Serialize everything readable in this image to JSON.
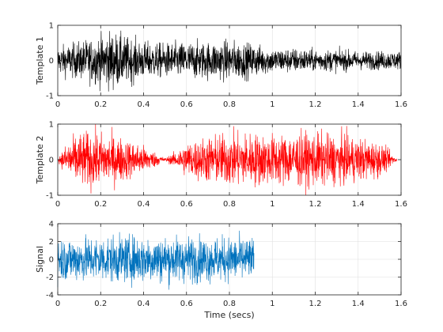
{
  "chart_data": [
    {
      "type": "line",
      "ylabel": "Template 1",
      "xlabel": "",
      "xlim": [
        0,
        1.6
      ],
      "ylim": [
        -1,
        1
      ],
      "xticks": [
        0,
        0.2,
        0.4,
        0.6,
        0.8,
        1,
        1.2,
        1.4,
        1.6
      ],
      "xtick_labels": [
        "0",
        "0.2",
        "0.4",
        "0.6",
        "0.8",
        "1",
        "1.2",
        "1.4",
        "1.6"
      ],
      "yticks": [
        -1,
        0,
        1
      ],
      "ytick_labels": [
        "-1",
        "0",
        "1"
      ],
      "grid": true,
      "series": [
        {
          "color": "#000000",
          "x_range": [
            0,
            1.6
          ],
          "envelope_x": [
            0,
            0.1,
            0.2,
            0.25,
            0.3,
            0.4,
            0.5,
            0.6,
            0.7,
            0.8,
            0.9,
            1.0,
            1.1,
            1.2,
            1.3,
            1.4,
            1.5,
            1.6
          ],
          "envelope_amplitude": [
            0.45,
            0.6,
            0.8,
            0.95,
            0.8,
            0.6,
            0.55,
            0.6,
            0.6,
            0.65,
            0.55,
            0.4,
            0.4,
            0.35,
            0.35,
            0.3,
            0.3,
            0.3
          ]
        }
      ]
    },
    {
      "type": "line",
      "ylabel": "Template 2",
      "xlabel": "",
      "xlim": [
        0,
        1.6
      ],
      "ylim": [
        -1,
        1
      ],
      "xticks": [
        0,
        0.2,
        0.4,
        0.6,
        0.8,
        1,
        1.2,
        1.4,
        1.6
      ],
      "xtick_labels": [
        "0",
        "0.2",
        "0.4",
        "0.6",
        "0.8",
        "1",
        "1.2",
        "1.4",
        "1.6"
      ],
      "yticks": [
        -1,
        0,
        1
      ],
      "ytick_labels": [
        "-1",
        "0",
        "1"
      ],
      "grid": true,
      "series": [
        {
          "color": "#ff0000",
          "x_range": [
            0,
            1.58
          ],
          "envelope_x": [
            0,
            0.05,
            0.1,
            0.15,
            0.2,
            0.3,
            0.4,
            0.45,
            0.5,
            0.55,
            0.6,
            0.7,
            0.8,
            0.9,
            1.0,
            1.1,
            1.2,
            1.3,
            1.4,
            1.5,
            1.55,
            1.58
          ],
          "envelope_amplitude": [
            0.05,
            0.6,
            0.85,
            0.9,
            0.85,
            0.7,
            0.45,
            0.25,
            0.05,
            0.25,
            0.55,
            0.75,
            0.85,
            0.85,
            0.8,
            0.85,
            0.85,
            0.8,
            0.7,
            0.55,
            0.25,
            0.05
          ]
        }
      ]
    },
    {
      "type": "line",
      "ylabel": "Signal",
      "xlabel": "Time (secs)",
      "xlim": [
        0,
        1.6
      ],
      "ylim": [
        -4,
        4
      ],
      "xticks": [
        0,
        0.2,
        0.4,
        0.6,
        0.8,
        1,
        1.2,
        1.4,
        1.6
      ],
      "xtick_labels": [
        "0",
        "0.2",
        "0.4",
        "0.6",
        "0.8",
        "1",
        "1.2",
        "1.4",
        "1.6"
      ],
      "yticks": [
        -4,
        -2,
        0,
        2,
        4
      ],
      "ytick_labels": [
        "-4",
        "-2",
        "0",
        "2",
        "4"
      ],
      "grid": true,
      "series": [
        {
          "color": "#0072bd",
          "x_range": [
            0,
            0.915
          ],
          "envelope_x": [
            0,
            0.2,
            0.4,
            0.6,
            0.8,
            0.915
          ],
          "envelope_amplitude": [
            2.8,
            2.9,
            3.0,
            2.9,
            2.8,
            2.8
          ]
        }
      ]
    }
  ]
}
